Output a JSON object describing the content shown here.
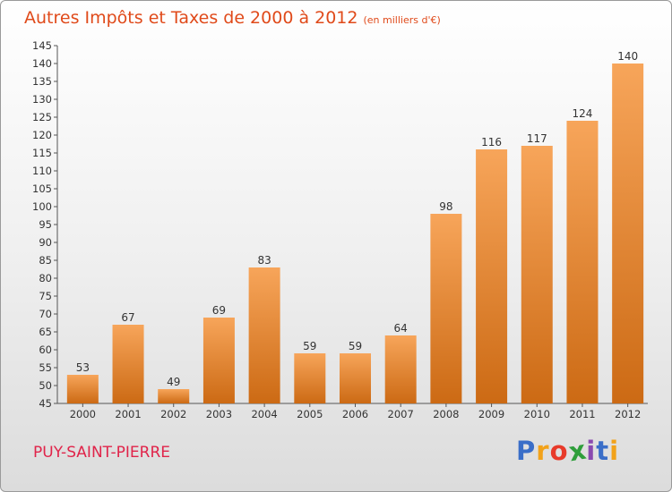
{
  "header": {
    "title": "Autres Impôts et Taxes de 2000 à 2012",
    "unit": "(en milliers d'€)"
  },
  "footer": {
    "commune": "PUY-SAINT-PIERRE",
    "logo_letters": [
      "P",
      "r",
      "o",
      "x",
      "i",
      "t",
      "i"
    ],
    "logo_colors": [
      "#3a6ec8",
      "#f2a21a",
      "#e83a2a",
      "#2e9e3a",
      "#8a4ab0",
      "#3a6ec8",
      "#f2a21a"
    ]
  },
  "colors": {
    "title": "#e04a1a",
    "commune": "#e0244a",
    "bar_top": "#f7a55a",
    "bar_bottom": "#cc6a14"
  },
  "chart_data": {
    "type": "bar",
    "title": "Autres Impôts et Taxes de 2000 à 2012",
    "categories": [
      "2000",
      "2001",
      "2002",
      "2003",
      "2004",
      "2005",
      "2006",
      "2007",
      "2008",
      "2009",
      "2010",
      "2011",
      "2012"
    ],
    "values": [
      53,
      67,
      49,
      69,
      83,
      59,
      59,
      64,
      98,
      116,
      117,
      124,
      140
    ],
    "ylim": [
      45,
      145
    ],
    "yticks": [
      45,
      50,
      55,
      60,
      65,
      70,
      75,
      80,
      85,
      90,
      95,
      100,
      105,
      110,
      115,
      120,
      125,
      130,
      135,
      140,
      145
    ],
    "grid": false,
    "legend": "none"
  }
}
